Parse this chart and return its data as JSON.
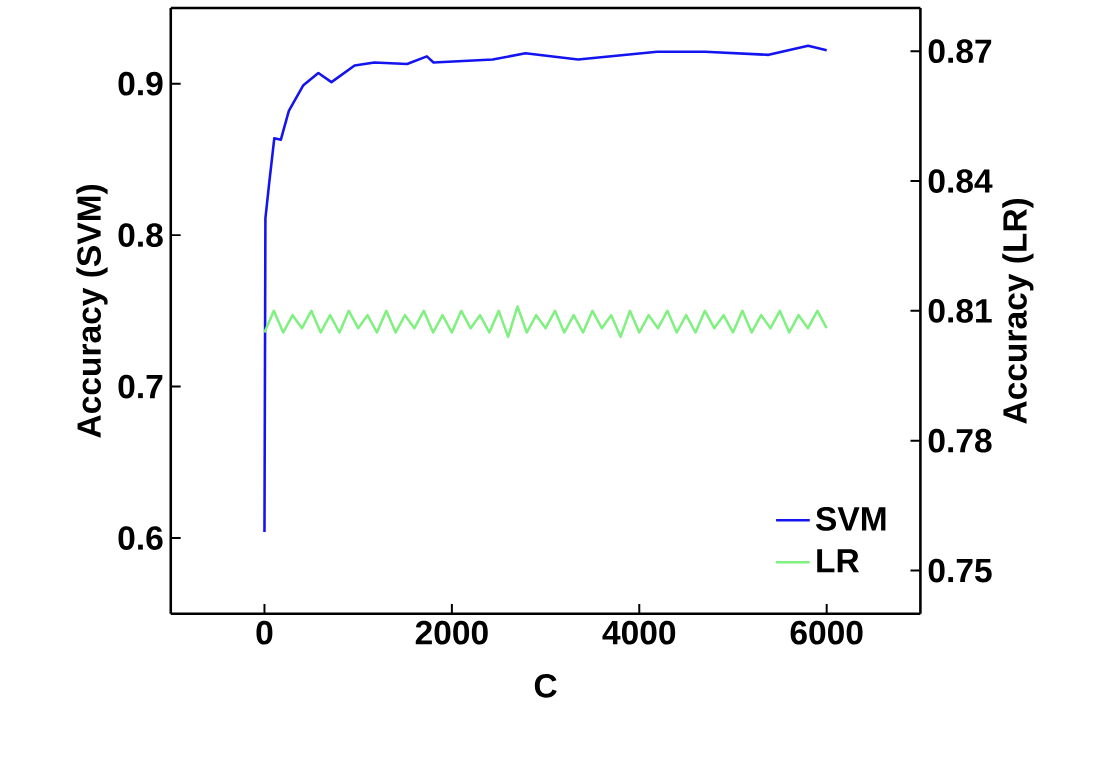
{
  "chart_data": {
    "type": "line",
    "xlabel": "C",
    "ylabel": "Accuracy  (SVM)",
    "y2label": "Accuracy  (LR)",
    "xlim": [
      -1000,
      7000
    ],
    "xticks": [
      0,
      2000,
      4000,
      6000
    ],
    "ylim": [
      0.55,
      0.95
    ],
    "yticks": [
      0.6,
      0.7,
      0.8,
      0.9
    ],
    "y2lim": [
      0.74,
      0.88
    ],
    "y2ticks": [
      0.75,
      0.78,
      0.81,
      0.84,
      0.87
    ],
    "legend": "bottom right",
    "grid": false,
    "series": [
      {
        "name": "SVM",
        "color": "#1414f0",
        "x": [
          0,
          10,
          48,
          105,
          175,
          260,
          415,
          575,
          715,
          962,
          1173,
          1522,
          1733,
          1804,
          2436,
          2785,
          3347,
          4190,
          4700,
          5381,
          5802,
          6000
        ],
        "values": [
          0.604,
          0.811,
          0.833,
          0.864,
          0.863,
          0.882,
          0.899,
          0.907,
          0.901,
          0.912,
          0.914,
          0.913,
          0.918,
          0.914,
          0.916,
          0.92,
          0.916,
          0.921,
          0.921,
          0.919,
          0.925,
          0.922
        ]
      },
      {
        "name": "LR",
        "color": "#80f080",
        "axis": "y2",
        "x": [
          0,
          100,
          200,
          300,
          400,
          500,
          600,
          700,
          800,
          900,
          1000,
          1100,
          1200,
          1300,
          1400,
          1500,
          1600,
          1700,
          1800,
          1900,
          2000,
          2100,
          2200,
          2300,
          2400,
          2500,
          2600,
          2700,
          2800,
          2900,
          3000,
          3100,
          3200,
          3300,
          3400,
          3500,
          3600,
          3700,
          3800,
          3900,
          4000,
          4100,
          4200,
          4300,
          4400,
          4500,
          4600,
          4700,
          4800,
          4900,
          5000,
          5100,
          5200,
          5300,
          5400,
          5500,
          5600,
          5700,
          5800,
          5900,
          6000
        ],
        "values": [
          0.805,
          0.81,
          0.805,
          0.809,
          0.806,
          0.81,
          0.805,
          0.809,
          0.805,
          0.81,
          0.806,
          0.809,
          0.805,
          0.81,
          0.805,
          0.809,
          0.806,
          0.81,
          0.805,
          0.809,
          0.805,
          0.81,
          0.806,
          0.809,
          0.805,
          0.81,
          0.804,
          0.811,
          0.805,
          0.809,
          0.806,
          0.81,
          0.805,
          0.809,
          0.805,
          0.81,
          0.806,
          0.809,
          0.804,
          0.81,
          0.805,
          0.809,
          0.806,
          0.81,
          0.805,
          0.809,
          0.805,
          0.81,
          0.806,
          0.809,
          0.805,
          0.81,
          0.805,
          0.809,
          0.806,
          0.81,
          0.805,
          0.809,
          0.806,
          0.81,
          0.806
        ]
      }
    ]
  }
}
